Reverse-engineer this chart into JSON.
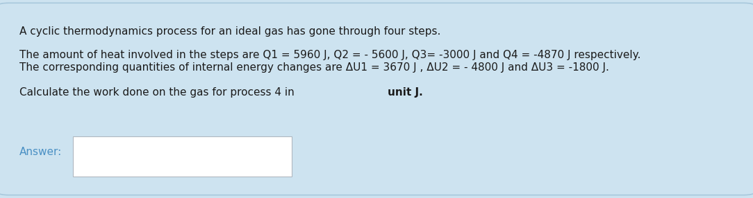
{
  "bg_color": "#cde3f0",
  "outer_border_color": "#a8c8dc",
  "answer_box_color": "#ffffff",
  "answer_label_color": "#4a90c4",
  "line1": "A cyclic thermodynamics process for an ideal gas has gone through four steps.",
  "line2": "The amount of heat involved in the steps are Q1 = 5960 J, Q2 = - 5600 J, Q3= -3000 J and Q4 = -4870 J respectively.",
  "line3": "The corresponding quantities of internal energy changes are ΔU1 = 3670 J , ΔU2 = - 4800 J and ΔU3 = -1800 J.",
  "line4_normal": "Calculate the work done on the gas for process 4 in ",
  "line4_bold": "unit J.",
  "answer_label": "Answer:",
  "text_color": "#1a1a1a",
  "font_size": 11.0,
  "figwidth": 10.84,
  "figheight": 2.86,
  "dpi": 100
}
